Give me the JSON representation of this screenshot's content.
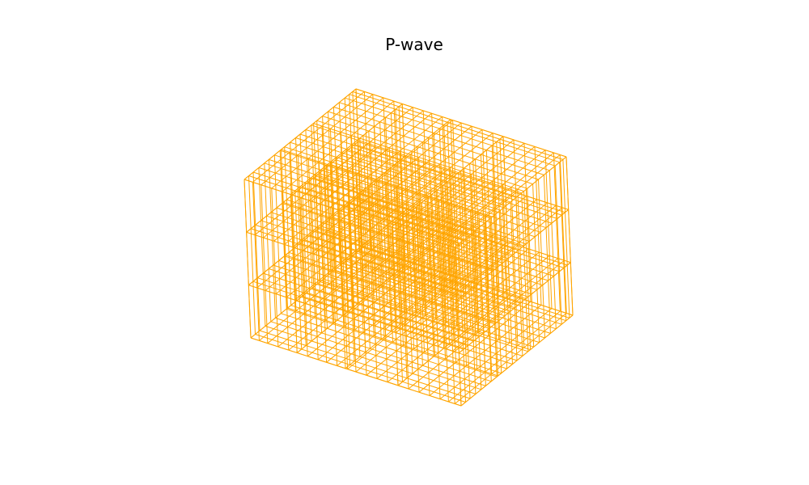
{
  "figure": {
    "title": "P-wave",
    "line_color": "#FFA500",
    "background_color": "#FFFFFF"
  },
  "chart_data": {
    "type": "3d-wireframe-grid",
    "title": "P-wave",
    "axes_visible": false,
    "grid": false,
    "structure": {
      "description_free": true,
      "layers": 4,
      "ticks_per_axis": [
        0,
        0.04,
        0.08,
        0.13,
        0.18,
        0.22,
        0.27,
        0.32,
        0.36,
        0.41,
        0.46,
        0.5,
        0.55,
        0.6,
        0.65,
        0.7,
        0.75,
        0.8,
        0.85,
        0.9,
        0.94,
        0.97,
        1.0
      ]
    }
  }
}
